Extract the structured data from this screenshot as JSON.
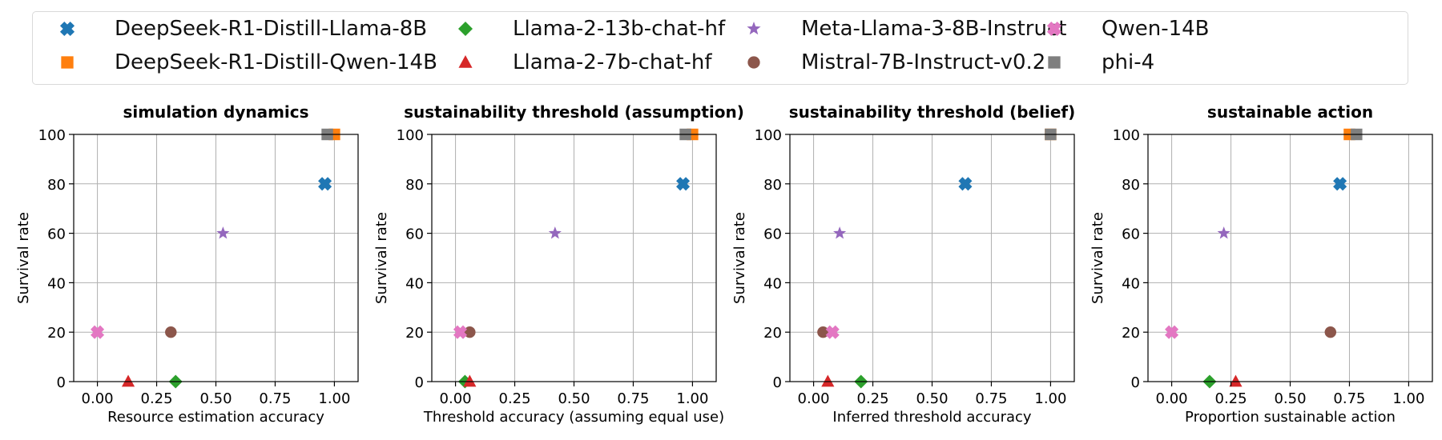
{
  "colors": {
    "DeepSeek-R1-Distill-Llama-8B": "#1f77b4",
    "DeepSeek-R1-Distill-Qwen-14B": "#ff7f0e",
    "Llama-2-13b-chat-hf": "#2ca02c",
    "Llama-2-7b-chat-hf": "#d62728",
    "Meta-Llama-3-8B-Instruct": "#9467bd",
    "Mistral-7B-Instruct-v0.2": "#8c564b",
    "Qwen-14B": "#e377c2",
    "phi-4": "#7f7f7f"
  },
  "legend": {
    "placement": "top, outside plots",
    "entries": [
      {
        "name": "DeepSeek-R1-Distill-Llama-8B",
        "marker": "x-cross-icon"
      },
      {
        "name": "DeepSeek-R1-Distill-Qwen-14B",
        "marker": "square-icon"
      },
      {
        "name": "Llama-2-13b-chat-hf",
        "marker": "diamond-icon"
      },
      {
        "name": "Llama-2-7b-chat-hf",
        "marker": "triangle-icon"
      },
      {
        "name": "Meta-Llama-3-8B-Instruct",
        "marker": "star-icon"
      },
      {
        "name": "Mistral-7B-Instruct-v0.2",
        "marker": "circle-icon"
      },
      {
        "name": "Qwen-14B",
        "marker": "x-cross-icon"
      },
      {
        "name": "phi-4",
        "marker": "square-icon"
      }
    ]
  },
  "chart_data": [
    {
      "type": "scatter",
      "title": "simulation dynamics",
      "xlabel": "Resource estimation accuracy",
      "ylabel": "Survival rate",
      "xlim": [
        -0.1,
        1.1
      ],
      "ylim": [
        0,
        100
      ],
      "xticks": [
        "0.00",
        "0.25",
        "0.50",
        "0.75",
        "1.00"
      ],
      "yticks": [
        "0",
        "20",
        "40",
        "60",
        "80",
        "100"
      ],
      "grid": true,
      "points": [
        {
          "series": "DeepSeek-R1-Distill-Llama-8B",
          "x": 0.96,
          "y": 80
        },
        {
          "series": "DeepSeek-R1-Distill-Qwen-14B",
          "x": 1.0,
          "y": 100
        },
        {
          "series": "Llama-2-13b-chat-hf",
          "x": 0.33,
          "y": 0
        },
        {
          "series": "Llama-2-7b-chat-hf",
          "x": 0.13,
          "y": 0
        },
        {
          "series": "Meta-Llama-3-8B-Instruct",
          "x": 0.53,
          "y": 60
        },
        {
          "series": "Mistral-7B-Instruct-v0.2",
          "x": 0.31,
          "y": 20
        },
        {
          "series": "Qwen-14B",
          "x": 0.0,
          "y": 20
        },
        {
          "series": "phi-4",
          "x": 0.97,
          "y": 100
        }
      ]
    },
    {
      "type": "scatter",
      "title": "sustainability threshold (assumption)",
      "xlabel": "Threshold accuracy (assuming equal use)",
      "ylabel": "Survival rate",
      "xlim": [
        -0.1,
        1.1
      ],
      "ylim": [
        0,
        100
      ],
      "xticks": [
        "0.00",
        "0.25",
        "0.50",
        "0.75",
        "1.00"
      ],
      "yticks": [
        "0",
        "20",
        "40",
        "60",
        "80",
        "100"
      ],
      "grid": true,
      "points": [
        {
          "series": "DeepSeek-R1-Distill-Llama-8B",
          "x": 0.96,
          "y": 80
        },
        {
          "series": "DeepSeek-R1-Distill-Qwen-14B",
          "x": 1.0,
          "y": 100
        },
        {
          "series": "Llama-2-13b-chat-hf",
          "x": 0.04,
          "y": 0
        },
        {
          "series": "Llama-2-7b-chat-hf",
          "x": 0.06,
          "y": 0
        },
        {
          "series": "Meta-Llama-3-8B-Instruct",
          "x": 0.42,
          "y": 60
        },
        {
          "series": "Mistral-7B-Instruct-v0.2",
          "x": 0.06,
          "y": 20
        },
        {
          "series": "Qwen-14B",
          "x": 0.02,
          "y": 20
        },
        {
          "series": "phi-4",
          "x": 0.97,
          "y": 100
        }
      ]
    },
    {
      "type": "scatter",
      "title": "sustainability threshold (belief)",
      "xlabel": "Inferred threshold accuracy",
      "ylabel": "Survival rate",
      "xlim": [
        -0.1,
        1.1
      ],
      "ylim": [
        0,
        100
      ],
      "xticks": [
        "0.00",
        "0.25",
        "0.50",
        "0.75",
        "1.00"
      ],
      "yticks": [
        "0",
        "20",
        "40",
        "60",
        "80",
        "100"
      ],
      "grid": true,
      "points": [
        {
          "series": "DeepSeek-R1-Distill-Llama-8B",
          "x": 0.64,
          "y": 80
        },
        {
          "series": "DeepSeek-R1-Distill-Qwen-14B",
          "x": 1.0,
          "y": 100
        },
        {
          "series": "Llama-2-13b-chat-hf",
          "x": 0.2,
          "y": 0
        },
        {
          "series": "Llama-2-7b-chat-hf",
          "x": 0.06,
          "y": 0
        },
        {
          "series": "Meta-Llama-3-8B-Instruct",
          "x": 0.11,
          "y": 60
        },
        {
          "series": "Mistral-7B-Instruct-v0.2",
          "x": 0.04,
          "y": 20
        },
        {
          "series": "Qwen-14B",
          "x": 0.08,
          "y": 20
        },
        {
          "series": "phi-4",
          "x": 1.0,
          "y": 100
        }
      ]
    },
    {
      "type": "scatter",
      "title": "sustainable action",
      "xlabel": "Proportion sustainable action",
      "ylabel": "Survival rate",
      "xlim": [
        -0.1,
        1.1
      ],
      "ylim": [
        0,
        100
      ],
      "xticks": [
        "0.00",
        "0.25",
        "0.50",
        "0.75",
        "1.00"
      ],
      "yticks": [
        "0",
        "20",
        "40",
        "60",
        "80",
        "100"
      ],
      "grid": true,
      "points": [
        {
          "series": "DeepSeek-R1-Distill-Llama-8B",
          "x": 0.71,
          "y": 80
        },
        {
          "series": "DeepSeek-R1-Distill-Qwen-14B",
          "x": 0.75,
          "y": 100
        },
        {
          "series": "Llama-2-13b-chat-hf",
          "x": 0.16,
          "y": 0
        },
        {
          "series": "Llama-2-7b-chat-hf",
          "x": 0.27,
          "y": 0
        },
        {
          "series": "Meta-Llama-3-8B-Instruct",
          "x": 0.22,
          "y": 60
        },
        {
          "series": "Mistral-7B-Instruct-v0.2",
          "x": 0.67,
          "y": 20
        },
        {
          "series": "Qwen-14B",
          "x": 0.0,
          "y": 20
        },
        {
          "series": "phi-4",
          "x": 0.78,
          "y": 100
        }
      ]
    }
  ]
}
